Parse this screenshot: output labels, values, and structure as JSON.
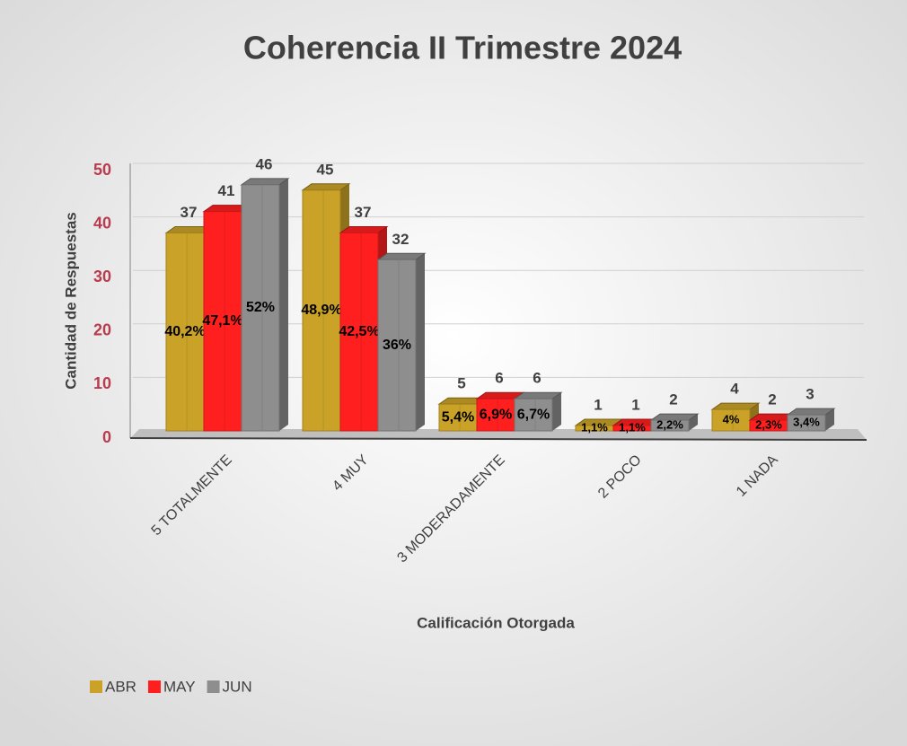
{
  "chart_data": {
    "type": "bar3d",
    "title": "Coherencia II Trimestre 2024",
    "y_label": "Cantidad de Respuestas",
    "x_label": "Calificación Otorgada",
    "categories": [
      "5 TOTALMENTE",
      "4 MUY",
      "3 MODERADAMENTE",
      "2 POCO",
      "1 NADA"
    ],
    "series": [
      {
        "name": "ABR",
        "color": "#c9a227",
        "values": [
          37,
          45,
          5,
          1,
          4
        ],
        "percent_labels": [
          "40,2%",
          "48,9%",
          "5,4%",
          "1,1%",
          "4%"
        ]
      },
      {
        "name": "MAY",
        "color": "#ff1f1f",
        "values": [
          41,
          37,
          6,
          1,
          2
        ],
        "percent_labels": [
          "47,1%",
          "42,5%",
          "6,9%",
          "1,1%",
          "2,3%"
        ]
      },
      {
        "name": "JUN",
        "color": "#8e8e8e",
        "values": [
          46,
          32,
          6,
          2,
          3
        ],
        "percent_labels": [
          "52%",
          "36%",
          "6,7%",
          "2,2%",
          "3,4%"
        ]
      }
    ],
    "ylim": [
      0,
      50
    ],
    "yticks": [
      0,
      10,
      20,
      30,
      40,
      50
    ],
    "grid": true,
    "legend": "bottom-left"
  }
}
